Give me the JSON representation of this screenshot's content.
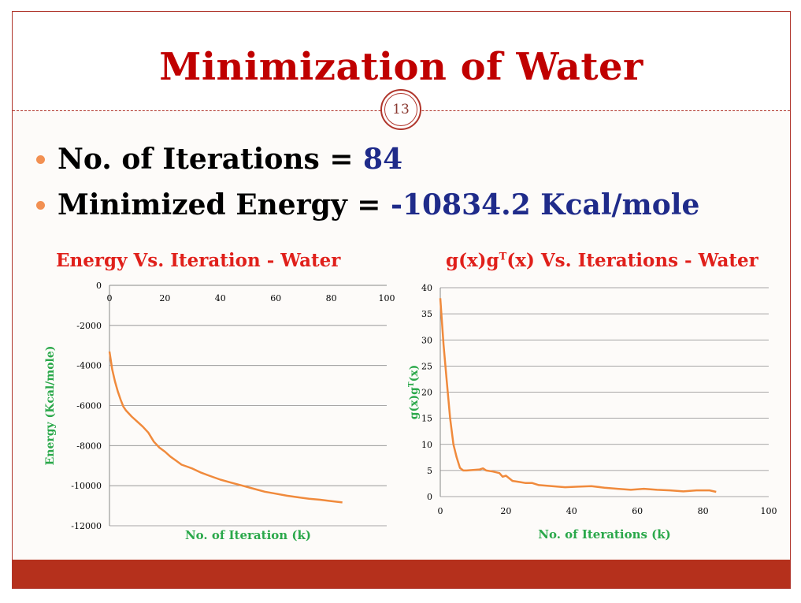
{
  "slide": {
    "title": "Minimization of Water",
    "page_number": "13"
  },
  "bullets": [
    {
      "label": "No. of Iterations = ",
      "value": "84"
    },
    {
      "label": "Minimized Energy = ",
      "value": "-10834.2 Kcal/mole"
    }
  ],
  "colors": {
    "title": "#c00000",
    "accent_border": "#b0352b",
    "bullet_dot": "#f29052",
    "bullet_value": "#1f2b8a",
    "chart_title": "#e0201b",
    "axis_label": "#2aa84a",
    "series_line": "#f08a3c",
    "footer": "#b5301c"
  },
  "chart_data": [
    {
      "type": "line",
      "title": "Energy Vs. Iteration - Water",
      "xlabel": "No. of  Iteration (k)",
      "ylabel": "Energy (Kcal/mole)",
      "xlim": [
        0,
        100
      ],
      "ylim": [
        -12000,
        0
      ],
      "xticks": [
        "0",
        "20",
        "40",
        "60",
        "80",
        "100"
      ],
      "yticks": [
        "0",
        "-2000",
        "-4000",
        "-6000",
        "-8000",
        "-10000",
        "-12000"
      ],
      "x_axis_position": "top",
      "grid": true,
      "series": [
        {
          "x": [
            0,
            1,
            2,
            3,
            4,
            5,
            6,
            8,
            10,
            12,
            14,
            16,
            18,
            20,
            22,
            24,
            26,
            28,
            30,
            33,
            36,
            40,
            44,
            48,
            52,
            56,
            60,
            64,
            68,
            72,
            76,
            80,
            84
          ],
          "y": [
            -3300,
            -4200,
            -4800,
            -5300,
            -5700,
            -6050,
            -6250,
            -6550,
            -6800,
            -7050,
            -7350,
            -7800,
            -8100,
            -8300,
            -8550,
            -8750,
            -8950,
            -9050,
            -9150,
            -9350,
            -9500,
            -9700,
            -9850,
            -10000,
            -10150,
            -10300,
            -10400,
            -10500,
            -10580,
            -10650,
            -10700,
            -10770,
            -10834.2
          ]
        }
      ]
    },
    {
      "type": "line",
      "title": "g(x)gT(x) Vs. Iterations - Water",
      "xlabel": "No. of Iterations (k)",
      "ylabel": "g(x)gT(x)",
      "xlim": [
        0,
        100
      ],
      "ylim": [
        0,
        40
      ],
      "xticks": [
        "0",
        "20",
        "40",
        "60",
        "80",
        "100"
      ],
      "yticks": [
        "40",
        "35",
        "30",
        "25",
        "20",
        "15",
        "10",
        "5",
        "0"
      ],
      "grid": true,
      "series": [
        {
          "x": [
            0,
            1,
            2,
            3,
            4,
            5,
            6,
            7,
            8,
            10,
            12,
            13,
            14,
            16,
            18,
            19,
            20,
            22,
            24,
            26,
            28,
            30,
            34,
            38,
            42,
            46,
            50,
            54,
            58,
            62,
            66,
            70,
            74,
            78,
            82,
            84
          ],
          "y": [
            38,
            29,
            22,
            15,
            10,
            7.5,
            5.5,
            5,
            5,
            5.1,
            5.2,
            5.4,
            5.0,
            4.8,
            4.5,
            3.8,
            4.0,
            3.0,
            2.8,
            2.6,
            2.6,
            2.2,
            2.0,
            1.8,
            1.9,
            2.0,
            1.7,
            1.5,
            1.3,
            1.5,
            1.3,
            1.2,
            1.0,
            1.2,
            1.2,
            0.9
          ]
        }
      ]
    }
  ]
}
